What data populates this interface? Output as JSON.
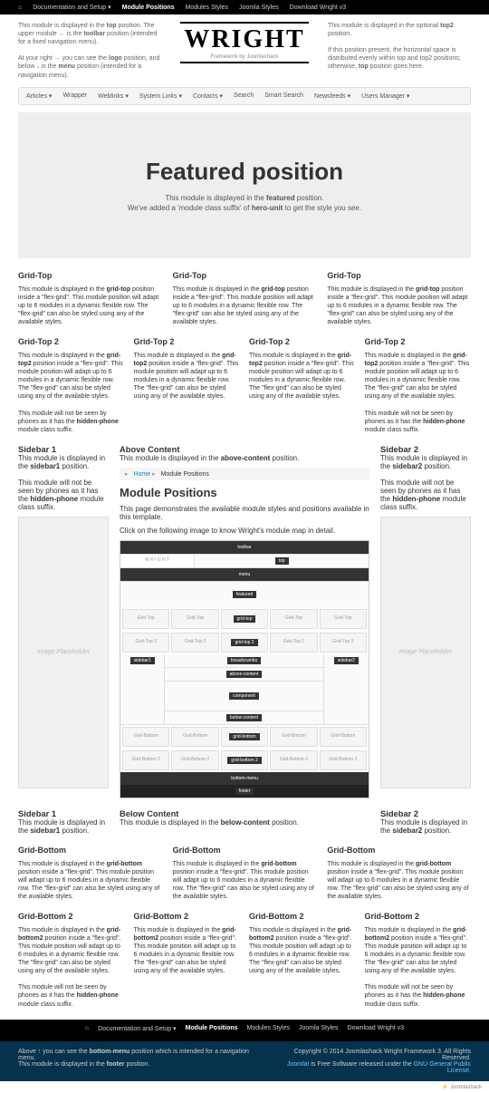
{
  "topnav": [
    "Documentation and Setup ▾",
    "Module Positions",
    "Modules Styles",
    "Joomla Styles",
    "Download Wright v3"
  ],
  "topnav_active": 1,
  "header": {
    "left1": "This module is displayed in the <b>top</b> position. The upper module ← is the <b>toolbar</b> position (intended for a fixed navigation menu).",
    "left2": "At your right → you can see the <b>logo</b> position, and below ↓ is the <b>menu</b> position (intended for a navigation menu).",
    "right": "This module is displayed in the optional <b>top2</b> position.<br><br>If this position present, the horizontal space is distributed evenly within top and top2 positions; otherwise, <b>top</b> position goes here.",
    "logo": "WRIGHT",
    "logo_sub": "Framework by Joomlashack"
  },
  "mainnav": [
    "Articles ▾",
    "Wrapper",
    "Weblinks ▾",
    "System Links ▾",
    "Contacts ▾",
    "Search",
    "Smart Search",
    "Newsfeeds ▾",
    "Users Manager ▾"
  ],
  "hero": {
    "title": "Featured position",
    "line1": "This module is displayed in the <b>featured</b> position.",
    "line2": "We've added a 'module class suffix' of <b>hero-unit</b> to get the style you see."
  },
  "gridtop": {
    "title": "Grid-Top",
    "text": "This module is displayed in the <b>grid-top</b> position inside a \"flex-grid\". This module position will adapt up to 6 modules in a dynamic flexible row. The \"flex-grid\" can also be styled using any of the available styles."
  },
  "gridtop2": {
    "title": "Grid-Top 2",
    "text": "This module is displayed in the <b>grid-top2</b> position inside a \"flex-grid\". This module position will adapt up to 6 modules in a dynamic flexible row. The \"flex-grid\" can also be styled using any of the available styles.",
    "hidden": "This module will not be seen by phones as it has the <b>hidden-phone</b> module class suffix."
  },
  "sidebar1": {
    "title": "Sidebar 1",
    "text": "This module is displayed in the <b>sidebar1</b> position.",
    "hidden": "This module will not be seen by phones as it has the <b>hidden-phone</b> module class suffix."
  },
  "sidebar2": {
    "title": "Sidebar 2",
    "text": "This module is displayed in the <b>sidebar2</b> position.",
    "hidden": "This module will not be seen by phones as it has the <b>hidden-phone</b> module class suffix."
  },
  "above": {
    "title": "Above Content",
    "text": "This module is displayed in the <b>above-content</b> position."
  },
  "below": {
    "title": "Below Content",
    "text": "This module is displayed in the <b>below-content</b> position."
  },
  "breadcrumb": {
    "home": "Home",
    "current": "Module Positions"
  },
  "page": {
    "title": "Module Positions",
    "intro": "This page demonstrates the available module styles and positions available in this template.",
    "click": "Click on the following image to know Wright's module map in detail."
  },
  "gridbottom": {
    "title": "Grid-Bottom",
    "text": "This module is displayed in the <b>grid-bottom</b> position inside a \"flex-grid\". This module position will adapt up to 6 modules in a dynamic flexible row. The \"flex-grid\" can also be styled using any of the available styles."
  },
  "gridbottom2": {
    "title": "Grid-Bottom 2",
    "text": "This module is displayed in the <b>grid-bottom2</b> position inside a \"flex-grid\". This module position will adapt up to 6 modules in a dynamic flexible row. The \"flex-grid\" can also be styled using any of the available styles.",
    "hidden": "This module will not be seen by phones as it has the <b>hidden-phone</b> module class suffix."
  },
  "footer": {
    "left": "Above ↑ you can see the <b>bottom-menu</b> position which is intended for a navigation menu.<br>This module is displayed in the <b>footer</b> position.",
    "right": "Copyright © 2014 Joomlashack Wright Framework 3. All Rights Reserved.<br><a>Joomla!</a> is Free Software released under the <a>GNU General Public License.</a>"
  },
  "placeholder_text": "Image Placeholder",
  "modmap": {
    "labels": [
      "toolbar",
      "top",
      "menu",
      "featured",
      "breadcrumbs",
      "above-content",
      "component",
      "below-content",
      "bottom-menu",
      "footer"
    ],
    "gridlabels": [
      "grid-top",
      "grid-top 2",
      "grid-bottom",
      "grid-bottom 2"
    ],
    "sidelabels": [
      "sidebar1",
      "sidebar2"
    ]
  }
}
